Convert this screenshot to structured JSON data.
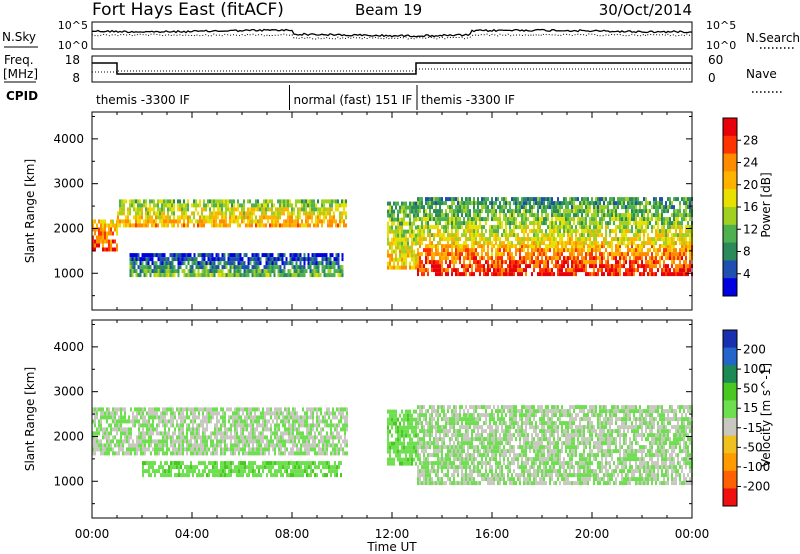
{
  "header": {
    "station": "Fort Hays East (fitACF)",
    "beam": "Beam 19",
    "date": "30/Oct/2014"
  },
  "noise_panel": {
    "left_label": "N.Sky",
    "left_ticks": [
      "10^5",
      "10^0"
    ],
    "right_ticks": [
      "10^5",
      "10^0"
    ],
    "right_label": "N.Search"
  },
  "freq_panel": {
    "left_label_top": "Freq.",
    "left_label_bottom": "[MHz]",
    "left_ticks": [
      "18",
      "8"
    ],
    "right_ticks": [
      "60",
      "0"
    ],
    "right_label": "Nave",
    "cpid_label": "CPID"
  },
  "cpid_segments": [
    {
      "start_hour": 0,
      "end_hour": 7.9,
      "label": "themis -3300 IF"
    },
    {
      "start_hour": 7.9,
      "end_hour": 13.0,
      "label": "normal (fast) 151 IF"
    },
    {
      "start_hour": 13.0,
      "end_hour": 24,
      "label": "themis -3300 IF"
    }
  ],
  "time_axis": {
    "label": "Time UT",
    "ticks": [
      "00:00",
      "04:00",
      "08:00",
      "12:00",
      "16:00",
      "20:00",
      "00:00"
    ]
  },
  "power_colorbar": {
    "label": "Power [dB]",
    "ticks": [
      "28",
      "24",
      "20",
      "16",
      "12",
      "8",
      "4"
    ],
    "colors": [
      "#e8000b",
      "#ff3300",
      "#ff8c00",
      "#ffb300",
      "#e8e000",
      "#a0d020",
      "#4fb04f",
      "#2a8a5a",
      "#1f4fb0",
      "#0000e0"
    ]
  },
  "velocity_colorbar": {
    "label": "Velocity [m s^-1]",
    "ticks": [
      "200",
      "100",
      "50",
      "15",
      "-15",
      "-50",
      "-100",
      "-200"
    ],
    "colors": [
      "#1a2fb0",
      "#2266cc",
      "#1c8a55",
      "#48c820",
      "#6ee050",
      "#c8c8c0",
      "#f0c020",
      "#ff9a00",
      "#ff6000",
      "#f01010"
    ]
  },
  "chart_data": [
    {
      "type": "heatmap",
      "title": "",
      "xlabel": "Time UT",
      "ylabel": "Slant Range [km]",
      "xlim": [
        0,
        24
      ],
      "ylim": [
        180,
        4600
      ],
      "yticks": [
        1000,
        2000,
        3000,
        4000
      ],
      "quantity": "Power [dB]",
      "colorbar_range": [
        0,
        32
      ],
      "echo_regions": [
        {
          "t_start": 0.0,
          "t_end": 1.0,
          "range_low": 1500,
          "range_high": 2200,
          "power_db": 24
        },
        {
          "t_start": 1.0,
          "t_end": 10.2,
          "range_low": 2050,
          "range_high": 2650,
          "power_db": 18
        },
        {
          "t_start": 1.5,
          "t_end": 10.0,
          "range_low": 950,
          "range_high": 1450,
          "power_db": 8
        },
        {
          "t_start": 11.8,
          "t_end": 13.0,
          "range_low": 1100,
          "range_high": 2600,
          "power_db": 16
        },
        {
          "t_start": 13.0,
          "t_end": 24.0,
          "range_low": 950,
          "range_high": 1650,
          "power_db": 26
        },
        {
          "t_start": 13.0,
          "t_end": 24.0,
          "range_low": 1650,
          "range_high": 2700,
          "power_db": 14
        }
      ]
    },
    {
      "type": "heatmap",
      "title": "",
      "xlabel": "Time UT",
      "ylabel": "Slant Range [km]",
      "xlim": [
        0,
        24
      ],
      "ylim": [
        180,
        4600
      ],
      "yticks": [
        1000,
        2000,
        3000,
        4000
      ],
      "quantity": "Velocity [m s^-1]",
      "colorbar_range": [
        -250,
        250
      ],
      "echo_regions": [
        {
          "t_start": 0.0,
          "t_end": 10.2,
          "range_low": 1600,
          "range_high": 2650,
          "velocity": 0
        },
        {
          "t_start": 2.0,
          "t_end": 10.0,
          "range_low": 1100,
          "range_high": 1450,
          "velocity": 30
        },
        {
          "t_start": 11.8,
          "t_end": 13.0,
          "range_low": 1400,
          "range_high": 2600,
          "velocity": 30
        },
        {
          "t_start": 13.0,
          "t_end": 24.0,
          "range_low": 950,
          "range_high": 2700,
          "velocity": 0
        }
      ]
    }
  ]
}
